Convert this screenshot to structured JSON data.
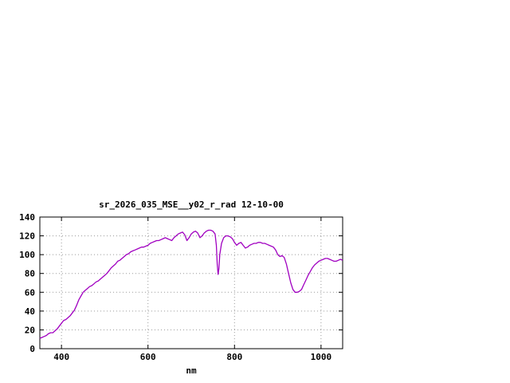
{
  "chart_data": {
    "type": "line",
    "title": "sr_2026_035_MSE__y02_r_rad 12-10-00",
    "xlabel": "nm",
    "ylabel": "",
    "xlim": [
      350,
      1050
    ],
    "ylim": [
      0,
      140
    ],
    "xticks": [
      400,
      600,
      800,
      1000
    ],
    "yticks": [
      0,
      20,
      40,
      60,
      80,
      100,
      120,
      140
    ],
    "grid": true,
    "legend": "none",
    "line_color": "#a000c0",
    "grid_color": "#9a9a9a",
    "axis_color": "#000000",
    "series": [
      {
        "name": "sr_2026_035_MSE__y02_r_rad",
        "x": [
          350,
          355,
          360,
          365,
          370,
          375,
          380,
          385,
          390,
          395,
          400,
          405,
          410,
          415,
          420,
          425,
          430,
          435,
          440,
          445,
          450,
          455,
          460,
          465,
          470,
          475,
          480,
          485,
          490,
          495,
          500,
          505,
          510,
          515,
          520,
          525,
          530,
          535,
          540,
          545,
          550,
          555,
          560,
          565,
          570,
          575,
          580,
          585,
          590,
          595,
          600,
          605,
          610,
          615,
          620,
          625,
          630,
          635,
          640,
          645,
          650,
          655,
          660,
          665,
          670,
          675,
          680,
          685,
          690,
          695,
          700,
          705,
          710,
          715,
          720,
          725,
          730,
          735,
          740,
          745,
          750,
          755,
          758,
          760,
          762,
          764,
          766,
          770,
          775,
          780,
          785,
          790,
          795,
          800,
          805,
          810,
          815,
          820,
          825,
          830,
          835,
          840,
          845,
          850,
          855,
          860,
          865,
          870,
          875,
          880,
          885,
          890,
          895,
          900,
          905,
          910,
          915,
          920,
          925,
          930,
          935,
          940,
          945,
          950,
          955,
          960,
          965,
          970,
          975,
          980,
          985,
          990,
          995,
          1000,
          1005,
          1010,
          1015,
          1020,
          1025,
          1030,
          1035,
          1040,
          1045,
          1050
        ],
        "y": [
          11,
          12,
          13,
          14,
          16,
          17,
          17,
          19,
          21,
          24,
          27,
          30,
          31,
          33,
          35,
          38,
          41,
          46,
          52,
          56,
          60,
          62,
          64,
          66,
          67,
          69,
          71,
          72,
          74,
          76,
          78,
          80,
          83,
          86,
          88,
          90,
          93,
          94,
          96,
          98,
          100,
          101,
          103,
          104,
          105,
          106,
          107,
          108,
          108,
          109,
          110,
          112,
          113,
          114,
          115,
          115,
          116,
          117,
          118,
          117,
          116,
          115,
          118,
          120,
          122,
          123,
          124,
          121,
          115,
          118,
          122,
          124,
          125,
          123,
          118,
          120,
          123,
          125,
          126,
          126,
          125,
          122,
          110,
          90,
          79,
          85,
          100,
          112,
          118,
          120,
          120,
          119,
          117,
          113,
          110,
          112,
          113,
          110,
          107,
          108,
          110,
          111,
          112,
          112,
          113,
          113,
          112,
          112,
          111,
          110,
          109,
          108,
          105,
          100,
          98,
          99,
          97,
          90,
          80,
          70,
          63,
          60,
          60,
          61,
          63,
          68,
          73,
          78,
          82,
          86,
          89,
          91,
          93,
          94,
          95,
          96,
          96,
          95,
          94,
          93,
          93,
          94,
          95,
          94
        ]
      }
    ]
  }
}
